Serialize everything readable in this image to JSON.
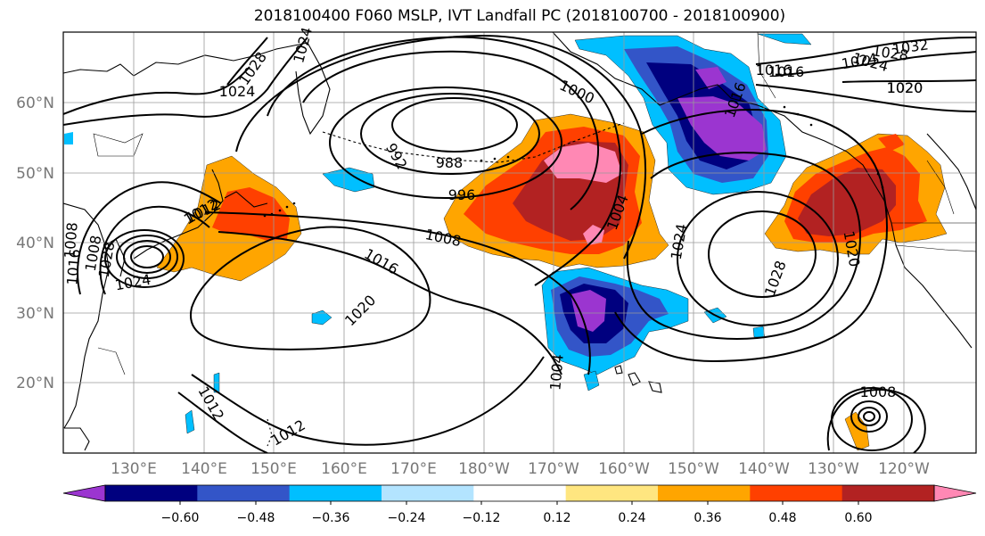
{
  "title": "2018100400 F060 MSLP, IVT Landfall PC (2018100700 - 2018100900)",
  "lon_labels": [
    "130°E",
    "140°E",
    "150°E",
    "160°E",
    "170°E",
    "180°W",
    "170°W",
    "160°W",
    "150°W",
    "140°W",
    "130°W",
    "120°W"
  ],
  "lat_labels": [
    "60°N",
    "50°N",
    "40°N",
    "30°N",
    "20°N"
  ],
  "colorbar": {
    "tick_labels": [
      "−0.60",
      "−0.48",
      "−0.36",
      "−0.24",
      "−0.12",
      "0.12",
      "0.24",
      "0.36",
      "0.48",
      "0.60"
    ],
    "colors": [
      "#9b35d0",
      "#00007f",
      "#3355c8",
      "#00bfff",
      "#b3e4ff",
      "#ffffff",
      "#ffe680",
      "#ffa500",
      "#ff4000",
      "#b22222",
      "#ff88b4"
    ]
  },
  "contour_labels": [
    "1028",
    "1024",
    "1024",
    "1020",
    "1024",
    "1024",
    "1028",
    "1016",
    "1012",
    "1008",
    "1004",
    "1000",
    "996",
    "992",
    "988",
    "1004",
    "1024",
    "1028",
    "1020",
    "1016",
    "1032",
    "1028",
    "1024",
    "1020",
    "1016",
    "1012",
    "1012",
    "1008",
    "1012",
    "1016",
    "1020",
    "1008",
    "1016",
    "1008"
  ]
}
